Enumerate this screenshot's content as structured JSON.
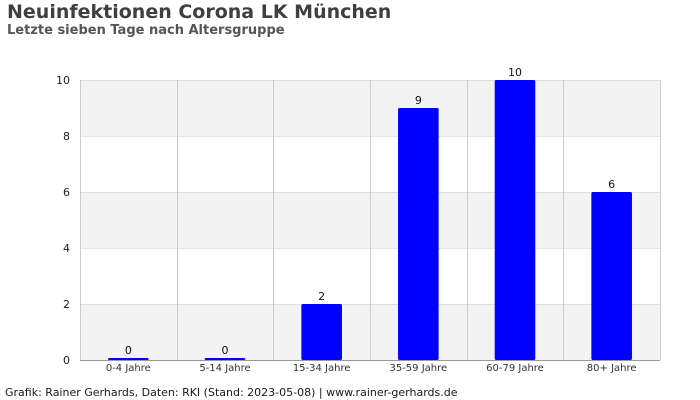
{
  "title": "Neuinfektionen Corona LK München",
  "subtitle": "Letzte sieben Tage nach Altersgruppe",
  "footer": "Grafik: Rainer Gerhards, Daten: RKI (Stand: 2023-05-08) | www.rainer-gerhards.de",
  "colors": {
    "bar": "#0000ff",
    "band": "#f3f3f3",
    "grid": "#cccccc",
    "axis": "#999999"
  },
  "chart_data": {
    "type": "bar",
    "title": "Neuinfektionen Corona LK München",
    "subtitle": "Letzte sieben Tage nach Altersgruppe",
    "xlabel": "",
    "ylabel": "",
    "categories": [
      "0-4 Jahre",
      "5-14 Jahre",
      "15-34 Jahre",
      "35-59 Jahre",
      "60-79 Jahre",
      "80+ Jahre"
    ],
    "values": [
      0,
      0,
      2,
      9,
      10,
      6
    ],
    "ylim": [
      0,
      10
    ],
    "yticks": [
      0,
      2,
      4,
      6,
      8,
      10
    ],
    "grid": true,
    "legend": "none"
  }
}
